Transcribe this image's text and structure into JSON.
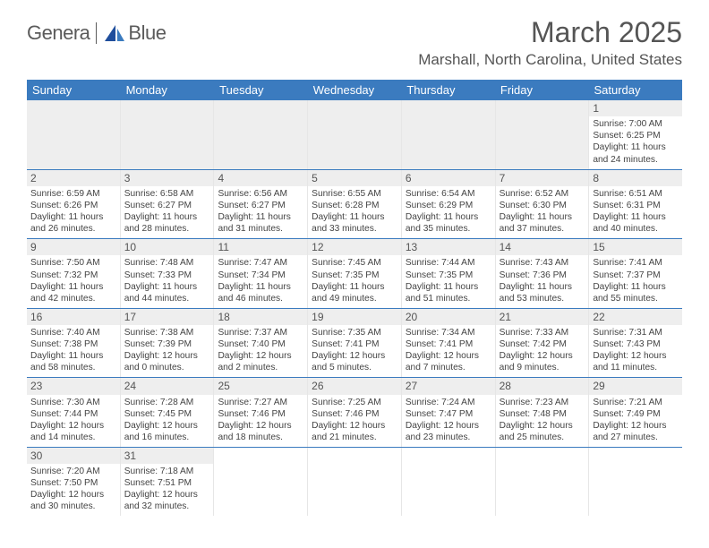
{
  "brand": {
    "part1": "Genera",
    "part2": "Blue"
  },
  "title": "March 2025",
  "location": "Marshall, North Carolina, United States",
  "colors": {
    "header_bg": "#3b7bbf",
    "header_text": "#ffffff",
    "stripe_bg": "#eeeeee",
    "text": "#444444",
    "title_text": "#555555"
  },
  "dayHeaders": [
    "Sunday",
    "Monday",
    "Tuesday",
    "Wednesday",
    "Thursday",
    "Friday",
    "Saturday"
  ],
  "weeks": [
    [
      {
        "d": null
      },
      {
        "d": null
      },
      {
        "d": null
      },
      {
        "d": null
      },
      {
        "d": null
      },
      {
        "d": null
      },
      {
        "d": "1",
        "sr": "Sunrise: 7:00 AM",
        "ss": "Sunset: 6:25 PM",
        "dl1": "Daylight: 11 hours",
        "dl2": "and 24 minutes."
      }
    ],
    [
      {
        "d": "2",
        "sr": "Sunrise: 6:59 AM",
        "ss": "Sunset: 6:26 PM",
        "dl1": "Daylight: 11 hours",
        "dl2": "and 26 minutes."
      },
      {
        "d": "3",
        "sr": "Sunrise: 6:58 AM",
        "ss": "Sunset: 6:27 PM",
        "dl1": "Daylight: 11 hours",
        "dl2": "and 28 minutes."
      },
      {
        "d": "4",
        "sr": "Sunrise: 6:56 AM",
        "ss": "Sunset: 6:27 PM",
        "dl1": "Daylight: 11 hours",
        "dl2": "and 31 minutes."
      },
      {
        "d": "5",
        "sr": "Sunrise: 6:55 AM",
        "ss": "Sunset: 6:28 PM",
        "dl1": "Daylight: 11 hours",
        "dl2": "and 33 minutes."
      },
      {
        "d": "6",
        "sr": "Sunrise: 6:54 AM",
        "ss": "Sunset: 6:29 PM",
        "dl1": "Daylight: 11 hours",
        "dl2": "and 35 minutes."
      },
      {
        "d": "7",
        "sr": "Sunrise: 6:52 AM",
        "ss": "Sunset: 6:30 PM",
        "dl1": "Daylight: 11 hours",
        "dl2": "and 37 minutes."
      },
      {
        "d": "8",
        "sr": "Sunrise: 6:51 AM",
        "ss": "Sunset: 6:31 PM",
        "dl1": "Daylight: 11 hours",
        "dl2": "and 40 minutes."
      }
    ],
    [
      {
        "d": "9",
        "sr": "Sunrise: 7:50 AM",
        "ss": "Sunset: 7:32 PM",
        "dl1": "Daylight: 11 hours",
        "dl2": "and 42 minutes."
      },
      {
        "d": "10",
        "sr": "Sunrise: 7:48 AM",
        "ss": "Sunset: 7:33 PM",
        "dl1": "Daylight: 11 hours",
        "dl2": "and 44 minutes."
      },
      {
        "d": "11",
        "sr": "Sunrise: 7:47 AM",
        "ss": "Sunset: 7:34 PM",
        "dl1": "Daylight: 11 hours",
        "dl2": "and 46 minutes."
      },
      {
        "d": "12",
        "sr": "Sunrise: 7:45 AM",
        "ss": "Sunset: 7:35 PM",
        "dl1": "Daylight: 11 hours",
        "dl2": "and 49 minutes."
      },
      {
        "d": "13",
        "sr": "Sunrise: 7:44 AM",
        "ss": "Sunset: 7:35 PM",
        "dl1": "Daylight: 11 hours",
        "dl2": "and 51 minutes."
      },
      {
        "d": "14",
        "sr": "Sunrise: 7:43 AM",
        "ss": "Sunset: 7:36 PM",
        "dl1": "Daylight: 11 hours",
        "dl2": "and 53 minutes."
      },
      {
        "d": "15",
        "sr": "Sunrise: 7:41 AM",
        "ss": "Sunset: 7:37 PM",
        "dl1": "Daylight: 11 hours",
        "dl2": "and 55 minutes."
      }
    ],
    [
      {
        "d": "16",
        "sr": "Sunrise: 7:40 AM",
        "ss": "Sunset: 7:38 PM",
        "dl1": "Daylight: 11 hours",
        "dl2": "and 58 minutes."
      },
      {
        "d": "17",
        "sr": "Sunrise: 7:38 AM",
        "ss": "Sunset: 7:39 PM",
        "dl1": "Daylight: 12 hours",
        "dl2": "and 0 minutes."
      },
      {
        "d": "18",
        "sr": "Sunrise: 7:37 AM",
        "ss": "Sunset: 7:40 PM",
        "dl1": "Daylight: 12 hours",
        "dl2": "and 2 minutes."
      },
      {
        "d": "19",
        "sr": "Sunrise: 7:35 AM",
        "ss": "Sunset: 7:41 PM",
        "dl1": "Daylight: 12 hours",
        "dl2": "and 5 minutes."
      },
      {
        "d": "20",
        "sr": "Sunrise: 7:34 AM",
        "ss": "Sunset: 7:41 PM",
        "dl1": "Daylight: 12 hours",
        "dl2": "and 7 minutes."
      },
      {
        "d": "21",
        "sr": "Sunrise: 7:33 AM",
        "ss": "Sunset: 7:42 PM",
        "dl1": "Daylight: 12 hours",
        "dl2": "and 9 minutes."
      },
      {
        "d": "22",
        "sr": "Sunrise: 7:31 AM",
        "ss": "Sunset: 7:43 PM",
        "dl1": "Daylight: 12 hours",
        "dl2": "and 11 minutes."
      }
    ],
    [
      {
        "d": "23",
        "sr": "Sunrise: 7:30 AM",
        "ss": "Sunset: 7:44 PM",
        "dl1": "Daylight: 12 hours",
        "dl2": "and 14 minutes."
      },
      {
        "d": "24",
        "sr": "Sunrise: 7:28 AM",
        "ss": "Sunset: 7:45 PM",
        "dl1": "Daylight: 12 hours",
        "dl2": "and 16 minutes."
      },
      {
        "d": "25",
        "sr": "Sunrise: 7:27 AM",
        "ss": "Sunset: 7:46 PM",
        "dl1": "Daylight: 12 hours",
        "dl2": "and 18 minutes."
      },
      {
        "d": "26",
        "sr": "Sunrise: 7:25 AM",
        "ss": "Sunset: 7:46 PM",
        "dl1": "Daylight: 12 hours",
        "dl2": "and 21 minutes."
      },
      {
        "d": "27",
        "sr": "Sunrise: 7:24 AM",
        "ss": "Sunset: 7:47 PM",
        "dl1": "Daylight: 12 hours",
        "dl2": "and 23 minutes."
      },
      {
        "d": "28",
        "sr": "Sunrise: 7:23 AM",
        "ss": "Sunset: 7:48 PM",
        "dl1": "Daylight: 12 hours",
        "dl2": "and 25 minutes."
      },
      {
        "d": "29",
        "sr": "Sunrise: 7:21 AM",
        "ss": "Sunset: 7:49 PM",
        "dl1": "Daylight: 12 hours",
        "dl2": "and 27 minutes."
      }
    ],
    [
      {
        "d": "30",
        "sr": "Sunrise: 7:20 AM",
        "ss": "Sunset: 7:50 PM",
        "dl1": "Daylight: 12 hours",
        "dl2": "and 30 minutes."
      },
      {
        "d": "31",
        "sr": "Sunrise: 7:18 AM",
        "ss": "Sunset: 7:51 PM",
        "dl1": "Daylight: 12 hours",
        "dl2": "and 32 minutes."
      },
      {
        "d": null
      },
      {
        "d": null
      },
      {
        "d": null
      },
      {
        "d": null
      },
      {
        "d": null
      }
    ]
  ]
}
